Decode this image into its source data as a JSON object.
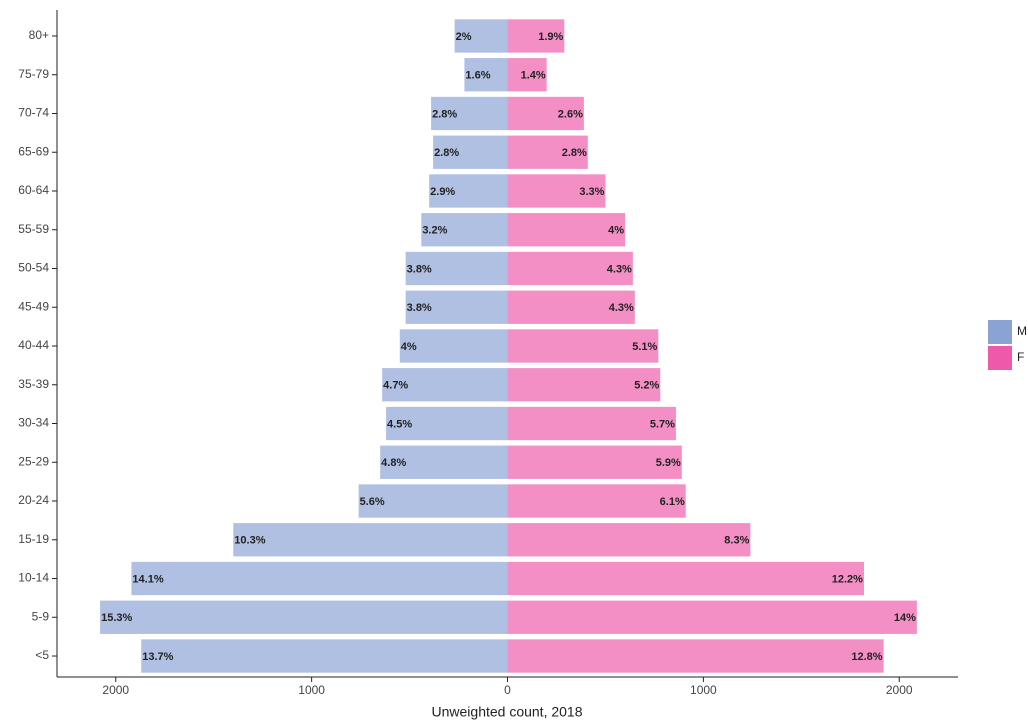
{
  "chart_data": {
    "type": "pyramid",
    "categories": [
      "<5",
      "5-9",
      "10-14",
      "15-19",
      "20-24",
      "25-29",
      "30-34",
      "35-39",
      "40-44",
      "45-49",
      "50-54",
      "55-59",
      "60-64",
      "65-69",
      "70-74",
      "75-79",
      "80+"
    ],
    "series": [
      {
        "name": "M",
        "color": "#8aa2d4",
        "values": [
          -1870,
          -2080,
          -1920,
          -1400,
          -760,
          -650,
          -620,
          -640,
          -550,
          -520,
          -520,
          -440,
          -400,
          -380,
          -390,
          -220,
          -270
        ],
        "labels": [
          "13.7%",
          "15.3%",
          "14.1%",
          "10.3%",
          "5.6%",
          "4.8%",
          "4.5%",
          "4.7%",
          "4%",
          "3.8%",
          "3.8%",
          "3.2%",
          "2.9%",
          "2.8%",
          "2.8%",
          "1.6%",
          "2%"
        ]
      },
      {
        "name": "F",
        "color": "#ee5aa9",
        "values": [
          1920,
          2090,
          1820,
          1240,
          910,
          890,
          860,
          780,
          770,
          650,
          640,
          600,
          500,
          410,
          390,
          200,
          290
        ],
        "labels": [
          "12.8%",
          "14%",
          "12.2%",
          "8.3%",
          "6.1%",
          "5.9%",
          "5.7%",
          "5.2%",
          "5.1%",
          "4.3%",
          "4.3%",
          "4%",
          "3.3%",
          "2.8%",
          "2.6%",
          "1.4%",
          "1.9%"
        ]
      }
    ],
    "xlim": [
      -2300,
      2300
    ],
    "xticks": [
      {
        "value": -2000,
        "label": "2000"
      },
      {
        "value": -1000,
        "label": "1000"
      },
      0,
      1000,
      2000
    ],
    "xlabel": "Unweighted count, 2018",
    "legend": "right"
  }
}
